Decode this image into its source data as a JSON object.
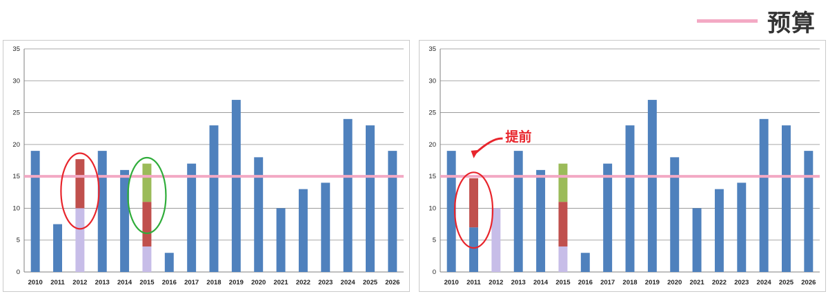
{
  "legend": {
    "label": "预算",
    "color": "#f3a9c4"
  },
  "colors": {
    "base": "#4f81bd",
    "lavender": "#c7bde8",
    "red": "#c0504d",
    "green": "#9bbb59",
    "budget": "#f3a9c4",
    "grid": "#8c8c8c",
    "circle_red": "#e8252c",
    "circle_green": "#2fad3a"
  },
  "chart_data": [
    {
      "type": "bar",
      "stacked": true,
      "ylim": [
        0,
        35
      ],
      "yticks": [
        0,
        5,
        10,
        15,
        20,
        25,
        30,
        35
      ],
      "grid": true,
      "budget_line": 15,
      "categories": [
        "2010",
        "2011",
        "2012",
        "2013",
        "2014",
        "2015",
        "2016",
        "2017",
        "2018",
        "2019",
        "2020",
        "2021",
        "2022",
        "2023",
        "2024",
        "2025",
        "2026"
      ],
      "series": [
        {
          "color_key": "base",
          "values": [
            19,
            7.5,
            0,
            19,
            16,
            0,
            3,
            17,
            23,
            27,
            18,
            10,
            13,
            14,
            24,
            23,
            19
          ]
        },
        {
          "color_key": "lavender",
          "values": [
            0,
            0,
            10,
            0,
            0,
            4,
            0,
            0,
            0,
            0,
            0,
            0,
            0,
            0,
            0,
            0,
            0
          ]
        },
        {
          "color_key": "red",
          "values": [
            0,
            0,
            7.7,
            0,
            0,
            7,
            0,
            0,
            0,
            0,
            0,
            0,
            0,
            0,
            0,
            0,
            0
          ]
        },
        {
          "color_key": "green",
          "values": [
            0,
            0,
            0,
            0,
            0,
            6,
            0,
            0,
            0,
            0,
            0,
            0,
            0,
            0,
            0,
            0,
            0
          ]
        }
      ],
      "highlights": [
        {
          "category": "2012",
          "color_key": "circle_red"
        },
        {
          "category": "2015",
          "color_key": "circle_green"
        }
      ]
    },
    {
      "type": "bar",
      "stacked": true,
      "ylim": [
        0,
        35
      ],
      "yticks": [
        0,
        5,
        10,
        15,
        20,
        25,
        30,
        35
      ],
      "grid": true,
      "budget_line": 15,
      "categories": [
        "2010",
        "2011",
        "2012",
        "2013",
        "2014",
        "2015",
        "2016",
        "2017",
        "2018",
        "2019",
        "2020",
        "2021",
        "2022",
        "2023",
        "2024",
        "2025",
        "2026"
      ],
      "series": [
        {
          "color_key": "base",
          "values": [
            19,
            7,
            0,
            19,
            16,
            0,
            3,
            17,
            23,
            27,
            18,
            10,
            13,
            14,
            24,
            23,
            19
          ]
        },
        {
          "color_key": "lavender",
          "values": [
            0,
            0,
            10,
            0,
            0,
            4,
            0,
            0,
            0,
            0,
            0,
            0,
            0,
            0,
            0,
            0,
            0
          ]
        },
        {
          "color_key": "red",
          "values": [
            0,
            7.7,
            0,
            0,
            0,
            7,
            0,
            0,
            0,
            0,
            0,
            0,
            0,
            0,
            0,
            0,
            0
          ]
        },
        {
          "color_key": "green",
          "values": [
            0,
            0,
            0,
            0,
            0,
            6,
            0,
            0,
            0,
            0,
            0,
            0,
            0,
            0,
            0,
            0,
            0
          ]
        }
      ],
      "highlights": [
        {
          "category": "2011",
          "color_key": "circle_red"
        }
      ],
      "annotation": {
        "text": "提前",
        "category": "2011"
      }
    }
  ]
}
